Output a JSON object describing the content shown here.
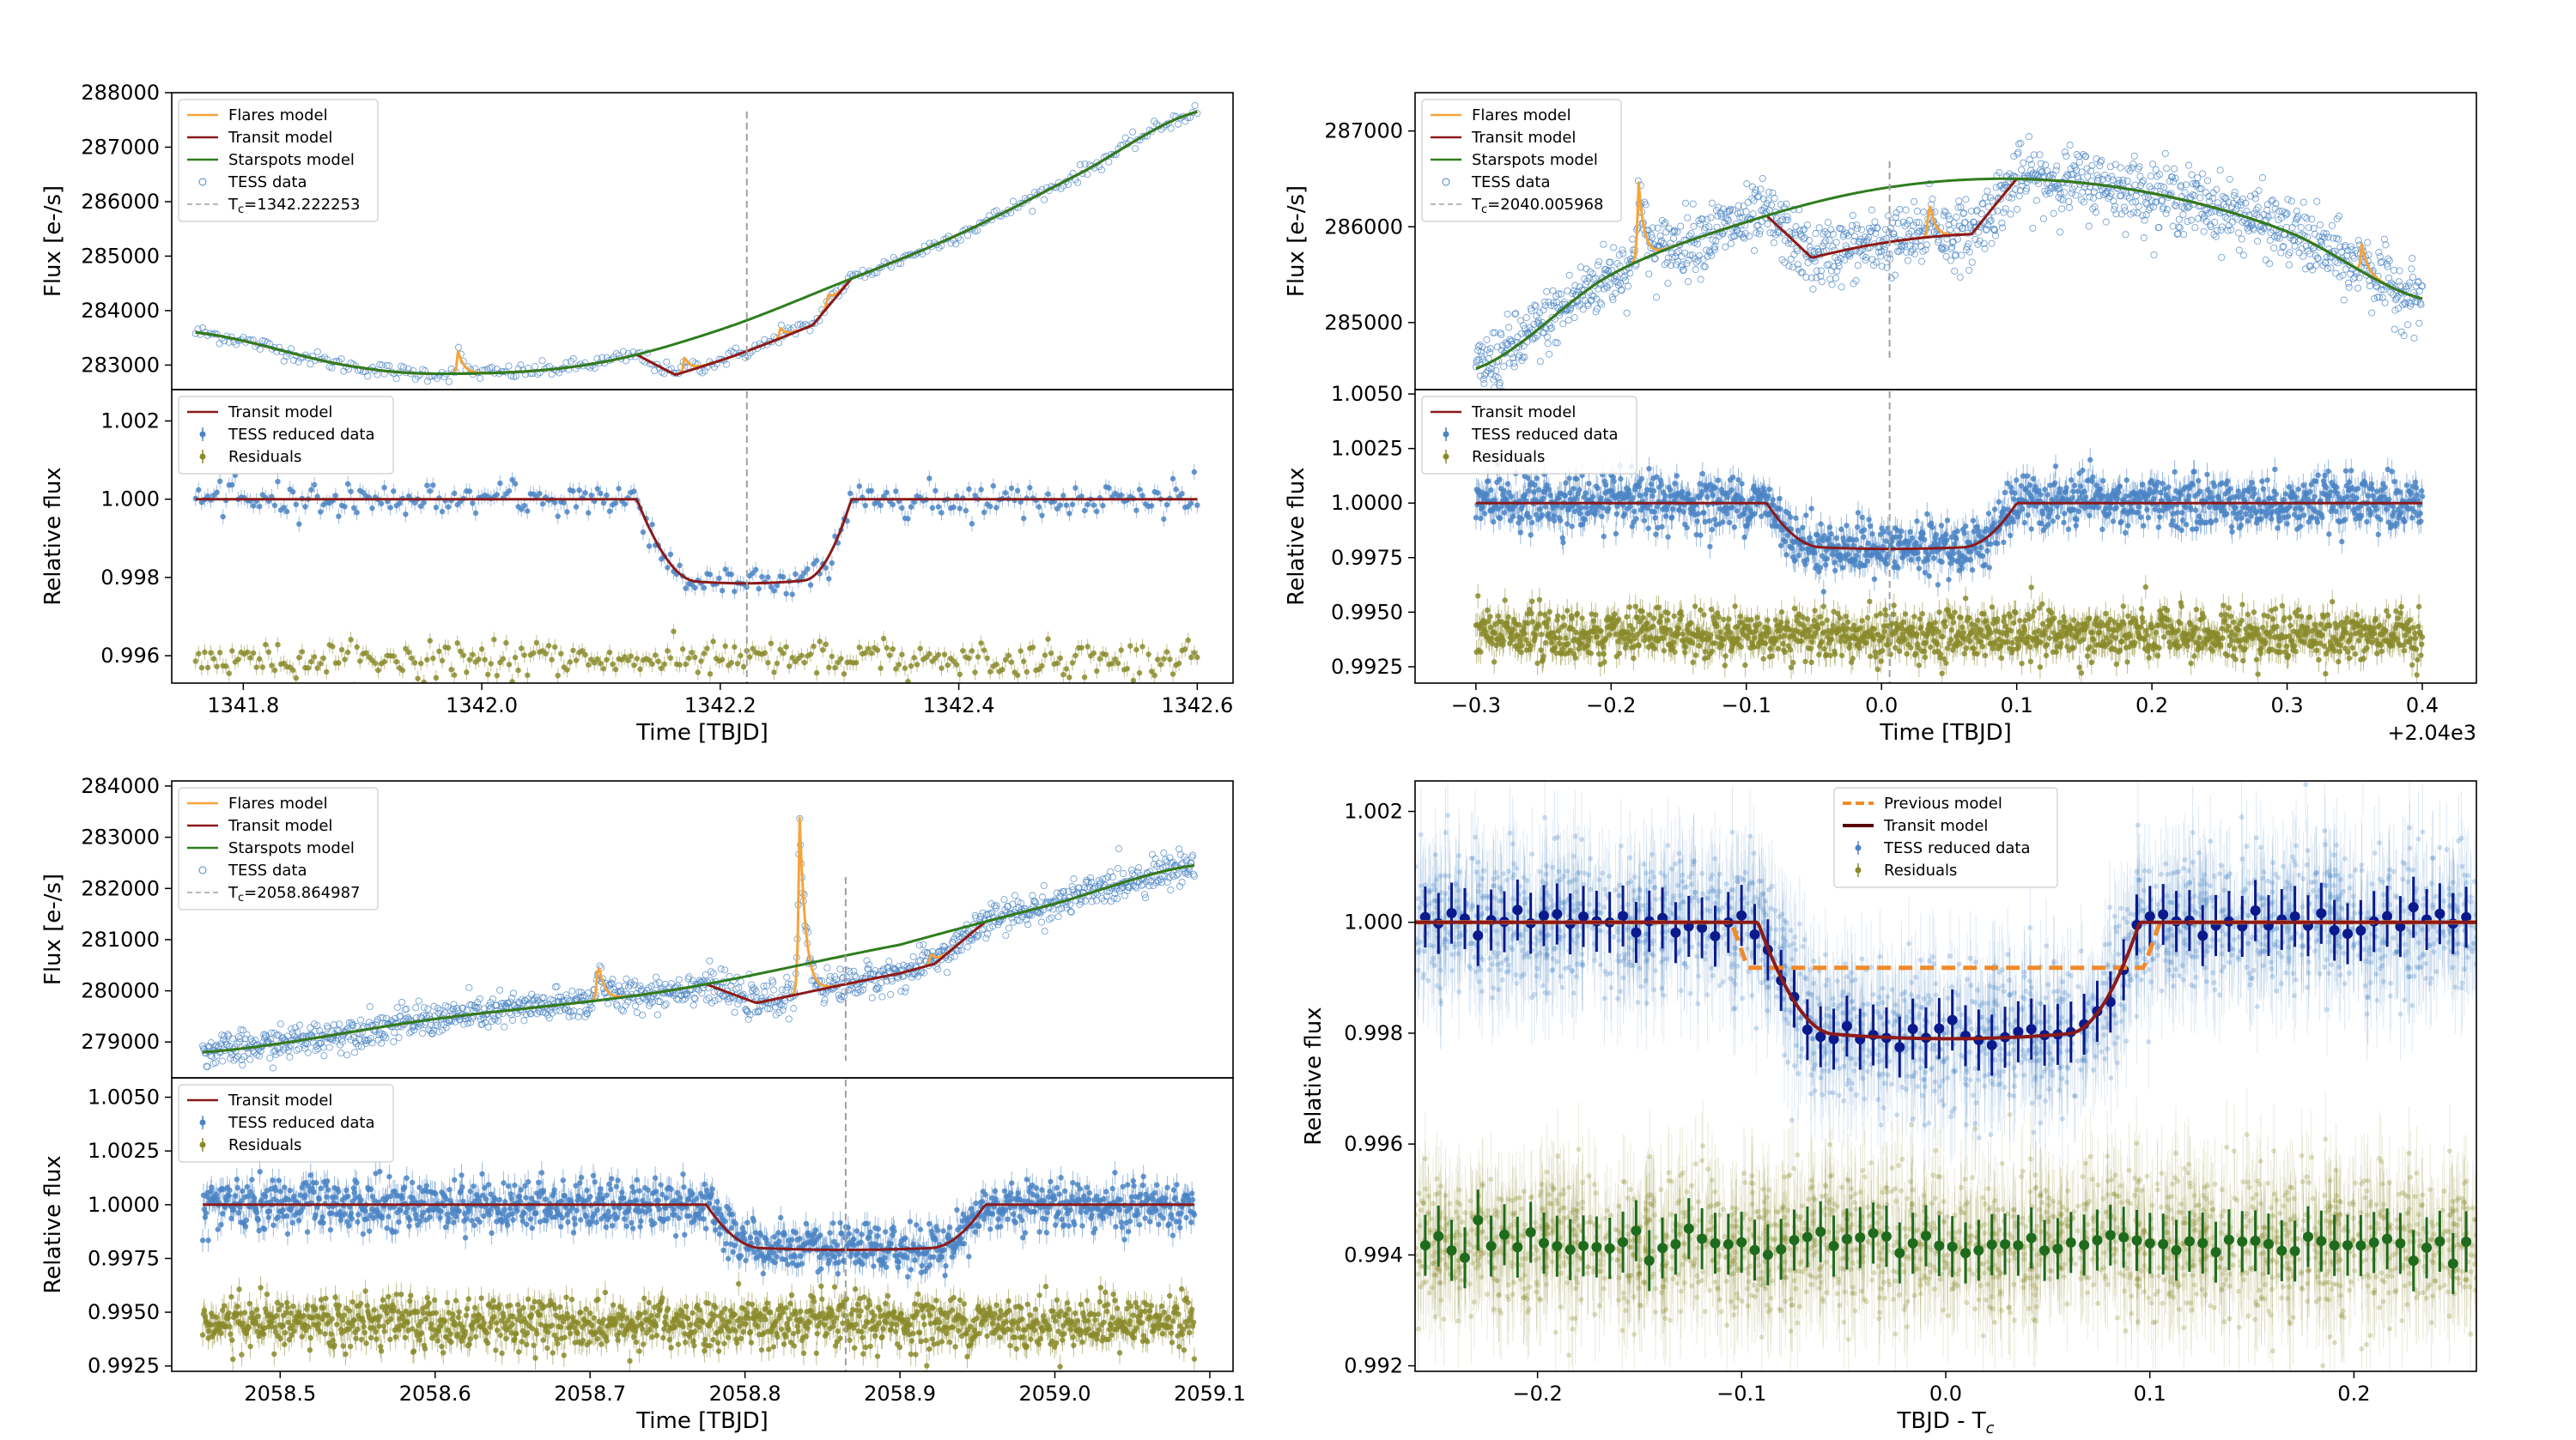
{
  "chart_data": [
    {
      "type": "line",
      "panel": "top-left upper",
      "ylabel": "Flux [e-/s]",
      "xlim": [
        1341.74,
        1342.63
      ],
      "ylim": [
        282550,
        288000
      ],
      "yticks": [
        "283000",
        "284000",
        "285000",
        "286000",
        "287000",
        "288000"
      ],
      "tc": 1342.222253,
      "legend": [
        "Flares model",
        "Transit model",
        "Starspots model",
        "TESS data",
        "Tc=1342.222253"
      ],
      "starspot_curve": {
        "x": [
          1341.76,
          1341.9,
          1342.0,
          1342.1,
          1342.2,
          1342.3,
          1342.4,
          1342.5,
          1342.6
        ],
        "y": [
          283600,
          282950,
          282850,
          283050,
          283650,
          284500,
          285400,
          286500,
          287650
        ]
      },
      "transit_window": [
        1342.13,
        1342.31
      ],
      "flares": [
        {
          "x": 1341.98,
          "amp": 420
        },
        {
          "x": 1342.17,
          "amp": 280
        },
        {
          "x": 1342.25,
          "amp": 200
        },
        {
          "x": 1342.29,
          "amp": 250
        }
      ]
    },
    {
      "type": "scatter",
      "panel": "top-left lower",
      "ylabel": "Relative flux",
      "xlabel": "Time [TBJD]",
      "xlim": [
        1341.74,
        1342.63
      ],
      "ylim": [
        0.9953,
        1.0028
      ],
      "yticks": [
        "0.996",
        "0.998",
        "1.000",
        "1.002"
      ],
      "xticks": [
        "1341.8",
        "1342.0",
        "1342.2",
        "1342.4",
        "1342.6"
      ],
      "legend": [
        "Transit model",
        "TESS reduced data",
        "Residuals"
      ],
      "transit": {
        "ingress": [
          1342.13,
          1342.18
        ],
        "egress": [
          1342.27,
          1342.31
        ],
        "depth": 0.00215
      },
      "residual_offset": 0.9959
    },
    {
      "type": "line",
      "panel": "top-right upper",
      "ylabel": "Flux [e-/s]",
      "xlim": [
        -0.345,
        0.44
      ],
      "ylim": [
        284300,
        287400
      ],
      "yticks": [
        "285000",
        "286000",
        "287000"
      ],
      "tc": 2040.005968,
      "legend": [
        "Flares model",
        "Transit model",
        "Starspots model",
        "TESS data",
        "Tc=2040.005968"
      ],
      "starspot_curve": {
        "x": [
          -0.3,
          -0.2,
          -0.1,
          0.0,
          0.1,
          0.2,
          0.3,
          0.4
        ],
        "y": [
          284520,
          285500,
          286050,
          286400,
          286500,
          286350,
          285950,
          285250
        ]
      },
      "transit_window": [
        -0.085,
        0.1
      ],
      "flares": [
        {
          "x": -0.18,
          "amp": 900
        },
        {
          "x": 0.035,
          "amp": 400
        },
        {
          "x": 0.355,
          "amp": 300
        }
      ]
    },
    {
      "type": "scatter",
      "panel": "top-right lower",
      "ylabel": "Relative flux",
      "xlabel": "Time [TBJD]",
      "x_offset_label": "+2.04e3",
      "xlim": [
        -0.345,
        0.44
      ],
      "ylim": [
        0.99175,
        1.0052
      ],
      "yticks": [
        "0.9925",
        "0.9950",
        "0.9975",
        "1.0000",
        "1.0025",
        "1.0050"
      ],
      "xticks": [
        "−0.3",
        "−0.2",
        "−0.1",
        "0.0",
        "0.1",
        "0.2",
        "0.3",
        "0.4"
      ],
      "legend": [
        "Transit model",
        "TESS reduced data",
        "Residuals"
      ],
      "transit": {
        "ingress": [
          -0.085,
          -0.045
        ],
        "egress": [
          0.06,
          0.1
        ],
        "depth": 0.0021
      },
      "residual_offset": 0.994
    },
    {
      "type": "line",
      "panel": "bottom-left upper",
      "ylabel": "Flux [e-/s]",
      "xlim": [
        2058.43,
        2059.115
      ],
      "ylim": [
        278300,
        284100
      ],
      "yticks": [
        "279000",
        "280000",
        "281000",
        "282000",
        "283000",
        "284000"
      ],
      "tc": 2058.864987,
      "legend": [
        "Flares model",
        "Transit model",
        "Starspots model",
        "TESS data",
        "Tc=2058.864987"
      ],
      "starspot_curve": {
        "x": [
          2058.45,
          2058.6,
          2058.75,
          2058.9,
          2059.0,
          2059.09
        ],
        "y": [
          278800,
          279450,
          280000,
          280900,
          281700,
          282450
        ]
      },
      "transit_window": [
        2058.775,
        2058.955
      ],
      "flares": [
        {
          "x": 2058.705,
          "amp": 800
        },
        {
          "x": 2058.835,
          "amp": 3700
        },
        {
          "x": 2058.92,
          "amp": 250
        }
      ]
    },
    {
      "type": "scatter",
      "panel": "bottom-left lower",
      "ylabel": "Relative flux",
      "xlabel": "Time [TBJD]",
      "xlim": [
        2058.43,
        2059.115
      ],
      "ylim": [
        0.99225,
        1.0059
      ],
      "yticks": [
        "0.9925",
        "0.9950",
        "0.9975",
        "1.0000",
        "1.0025",
        "1.0050"
      ],
      "xticks": [
        "2058.5",
        "2058.6",
        "2058.7",
        "2058.8",
        "2058.9",
        "2059.0",
        "2059.1"
      ],
      "legend": [
        "Transit model",
        "TESS reduced data",
        "Residuals"
      ],
      "transit": {
        "ingress": [
          2058.775,
          2058.81
        ],
        "egress": [
          2058.92,
          2058.955
        ],
        "depth": 0.0021
      },
      "residual_offset": 0.9945
    },
    {
      "type": "scatter",
      "panel": "bottom-right",
      "ylabel": "Relative flux",
      "xlabel": "TBJD - Tc",
      "xlim": [
        -0.26,
        0.26
      ],
      "ylim": [
        0.9919,
        1.00255
      ],
      "yticks": [
        "0.992",
        "0.994",
        "0.996",
        "0.998",
        "1.000",
        "1.002"
      ],
      "xticks": [
        "−0.2",
        "−0.1",
        "0.0",
        "0.1",
        "0.2"
      ],
      "legend": [
        "Previous model",
        "Transit model",
        "TESS reduced data",
        "Residuals"
      ],
      "transit": {
        "ingress": [
          -0.092,
          -0.055
        ],
        "egress": [
          0.06,
          0.095
        ],
        "depth": 0.0021
      },
      "previous_model": {
        "ingress": [
          -0.105,
          -0.097
        ],
        "egress": [
          0.097,
          0.105
        ],
        "depth": 0.00082
      },
      "residual_offset": 0.9942
    }
  ],
  "colors": {
    "flares": "#f5a53a",
    "transit": "#8b1a1a",
    "starspots": "#2e7d1e",
    "data": "#4a84c4",
    "residual": "#8a8a2a",
    "binned_blue": "#0a1a8c",
    "binned_green": "#1e6b1e",
    "previous": "#f08a2a",
    "tc_line": "#a0a0a0"
  },
  "labels": {
    "flux": "Flux [e-/s]",
    "relflux": "Relative flux",
    "time": "Time [TBJD]",
    "offset": "+2.04e3",
    "tbjd_tc": "TBJD - T",
    "sub_c": "c"
  }
}
